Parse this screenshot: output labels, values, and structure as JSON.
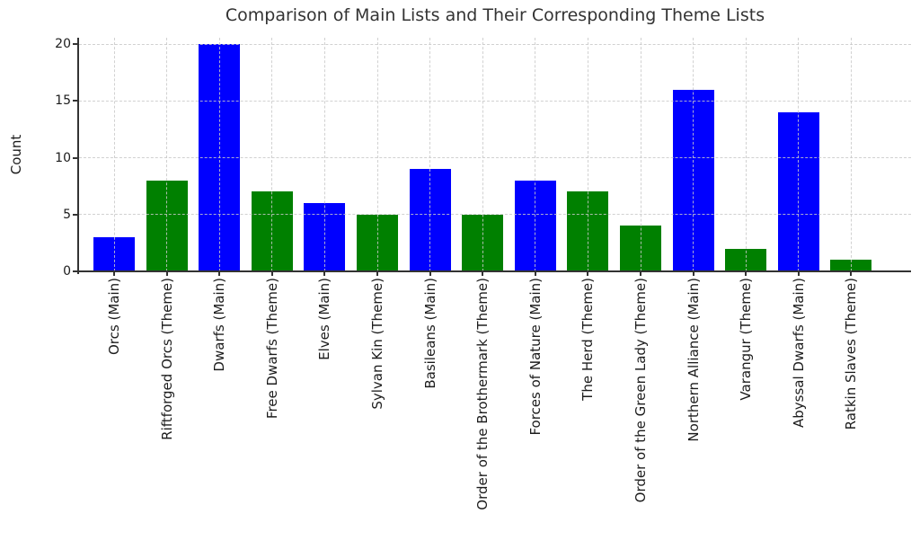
{
  "chart_data": {
    "type": "bar",
    "title": "Comparison of Main Lists and Their Corresponding Theme Lists",
    "xlabel": "",
    "ylabel": "Count",
    "categories": [
      "Orcs (Main)",
      "Riftforged Orcs (Theme)",
      "Dwarfs (Main)",
      "Free Dwarfs (Theme)",
      "Elves (Main)",
      "Sylvan Kin (Theme)",
      "Basileans (Main)",
      "Order of the Brothermark (Theme)",
      "Forces of Nature (Main)",
      "The Herd (Theme)",
      "Order of the Green Lady (Theme)",
      "Northern Alliance (Main)",
      "Varangur (Theme)",
      "Abyssal Dwarfs (Main)",
      "Ratkin Slaves (Theme)"
    ],
    "values": [
      3,
      8,
      20,
      7,
      6,
      5,
      9,
      5,
      8,
      7,
      4,
      16,
      2,
      14,
      1
    ],
    "groups": [
      "Main",
      "Theme",
      "Main",
      "Theme",
      "Main",
      "Theme",
      "Main",
      "Theme",
      "Main",
      "Theme",
      "Theme",
      "Main",
      "Theme",
      "Main",
      "Theme"
    ],
    "bar_colors": {
      "Main": "#0000ff",
      "Theme": "#008000"
    },
    "yticks": [
      0,
      5,
      10,
      15,
      20
    ],
    "ylim": [
      0,
      20.6
    ],
    "xtick_rotation": 90,
    "legend": "none",
    "grid": {
      "style": "dashed",
      "axes": "both",
      "color": "#c9c9c9",
      "drawn_above_bars": true
    },
    "style": {
      "background": "#ffffff",
      "spine_color": "#333333",
      "text_color": "#1c1c1c",
      "title_color": "#333333",
      "visible_spines": [
        "left",
        "bottom"
      ]
    }
  }
}
